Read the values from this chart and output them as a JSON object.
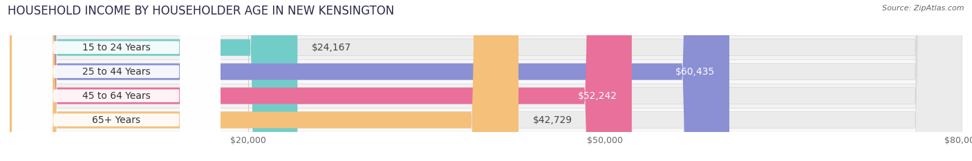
{
  "title": "HOUSEHOLD INCOME BY HOUSEHOLDER AGE IN NEW KENSINGTON",
  "source": "Source: ZipAtlas.com",
  "categories": [
    "15 to 24 Years",
    "25 to 44 Years",
    "45 to 64 Years",
    "65+ Years"
  ],
  "values": [
    24167,
    60435,
    52242,
    42729
  ],
  "labels": [
    "$24,167",
    "$60,435",
    "$52,242",
    "$42,729"
  ],
  "bar_colors": [
    "#72cdc9",
    "#8b8fd4",
    "#e8709a",
    "#f5c07a"
  ],
  "xlim": [
    0,
    80000
  ],
  "xticks": [
    20000,
    50000,
    80000
  ],
  "xticklabels": [
    "$20,000",
    "$50,000",
    "$80,000"
  ],
  "background_color": "#ffffff",
  "bar_bg_color": "#ebebeb",
  "row_bg_colors": [
    "#f7f7f7",
    "#f0f0f0"
  ],
  "title_fontsize": 12,
  "label_fontsize": 10,
  "tick_fontsize": 9,
  "source_fontsize": 8,
  "value_label_inside_color": "#ffffff",
  "value_label_outside_color": "#444444",
  "inside_threshold": 0.58
}
